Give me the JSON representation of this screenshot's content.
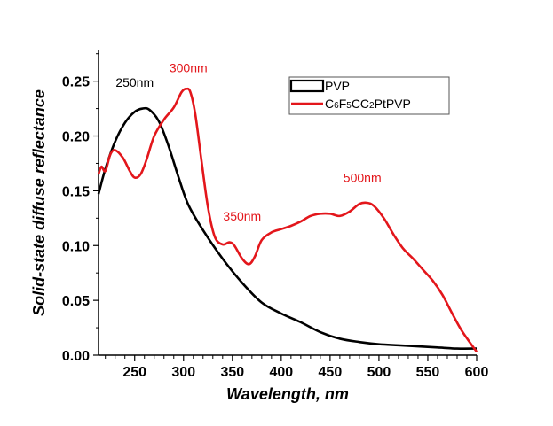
{
  "chart_data": {
    "type": "line",
    "title": "",
    "xlabel": "Wavelength, nm",
    "ylabel": "Solid-state diffuse reflectance",
    "xlim": [
      213,
      600
    ],
    "ylim": [
      0.0,
      0.278
    ],
    "xticks": [
      250,
      300,
      350,
      400,
      450,
      500,
      550,
      600
    ],
    "xtick_labels": [
      "250",
      "300",
      "350",
      "400",
      "450",
      "500",
      "550",
      "600"
    ],
    "yticks": [
      0.0,
      0.05,
      0.1,
      0.15,
      0.2,
      0.25
    ],
    "ytick_labels": [
      "0.00",
      "0.05",
      "0.10",
      "0.15",
      "0.20",
      "0.25"
    ],
    "grid": false,
    "legend_position": "top-right",
    "series": [
      {
        "name": "PVP",
        "color": "#000000",
        "x": [
          213,
          220,
          230,
          240,
          250,
          258,
          265,
          275,
          285,
          295,
          305,
          320,
          340,
          360,
          380,
          400,
          420,
          440,
          460,
          480,
          500,
          520,
          540,
          560,
          580,
          600
        ],
        "y": [
          0.147,
          0.17,
          0.195,
          0.212,
          0.222,
          0.225,
          0.224,
          0.213,
          0.19,
          0.162,
          0.137,
          0.114,
          0.088,
          0.066,
          0.048,
          0.038,
          0.03,
          0.021,
          0.015,
          0.012,
          0.01,
          0.009,
          0.008,
          0.007,
          0.006,
          0.006
        ]
      },
      {
        "name": "C6F5CC2PtPVP",
        "color": "#e3161b",
        "x": [
          213,
          216,
          220,
          225,
          230,
          238,
          245,
          250,
          256,
          262,
          270,
          280,
          290,
          298,
          303,
          307,
          312,
          318,
          325,
          332,
          340,
          347,
          352,
          360,
          367,
          373,
          380,
          390,
          400,
          410,
          420,
          430,
          440,
          450,
          460,
          470,
          480,
          488,
          495,
          505,
          515,
          525,
          535,
          545,
          555,
          565,
          575,
          585,
          600
        ],
        "y": [
          0.165,
          0.172,
          0.168,
          0.183,
          0.187,
          0.18,
          0.168,
          0.162,
          0.165,
          0.178,
          0.2,
          0.215,
          0.226,
          0.24,
          0.243,
          0.24,
          0.22,
          0.18,
          0.135,
          0.108,
          0.101,
          0.103,
          0.1,
          0.088,
          0.083,
          0.09,
          0.105,
          0.112,
          0.115,
          0.118,
          0.122,
          0.127,
          0.129,
          0.129,
          0.127,
          0.131,
          0.138,
          0.139,
          0.136,
          0.125,
          0.11,
          0.097,
          0.088,
          0.078,
          0.068,
          0.055,
          0.038,
          0.022,
          0.003
        ]
      }
    ],
    "annotations": [
      {
        "text": "250nm",
        "x": 250,
        "y": 0.245,
        "color": "#000000"
      },
      {
        "text": "300nm",
        "x": 305,
        "y": 0.258,
        "color": "#e3161b"
      },
      {
        "text": "350nm",
        "x": 360,
        "y": 0.123,
        "color": "#e3161b"
      },
      {
        "text": "500nm",
        "x": 483,
        "y": 0.158,
        "color": "#e3161b"
      }
    ],
    "legend": [
      {
        "label_parts": [
          {
            "t": "PVP",
            "sub": false
          }
        ],
        "color": "#000000",
        "style": "box"
      },
      {
        "label_parts": [
          {
            "t": "C",
            "sub": false
          },
          {
            "t": "6",
            "sub": true
          },
          {
            "t": "F",
            "sub": false
          },
          {
            "t": "5",
            "sub": true
          },
          {
            "t": "CC",
            "sub": false
          },
          {
            "t": "2",
            "sub": true
          },
          {
            "t": "PtPVP",
            "sub": false
          }
        ],
        "color": "#e3161b",
        "style": "line"
      }
    ]
  }
}
